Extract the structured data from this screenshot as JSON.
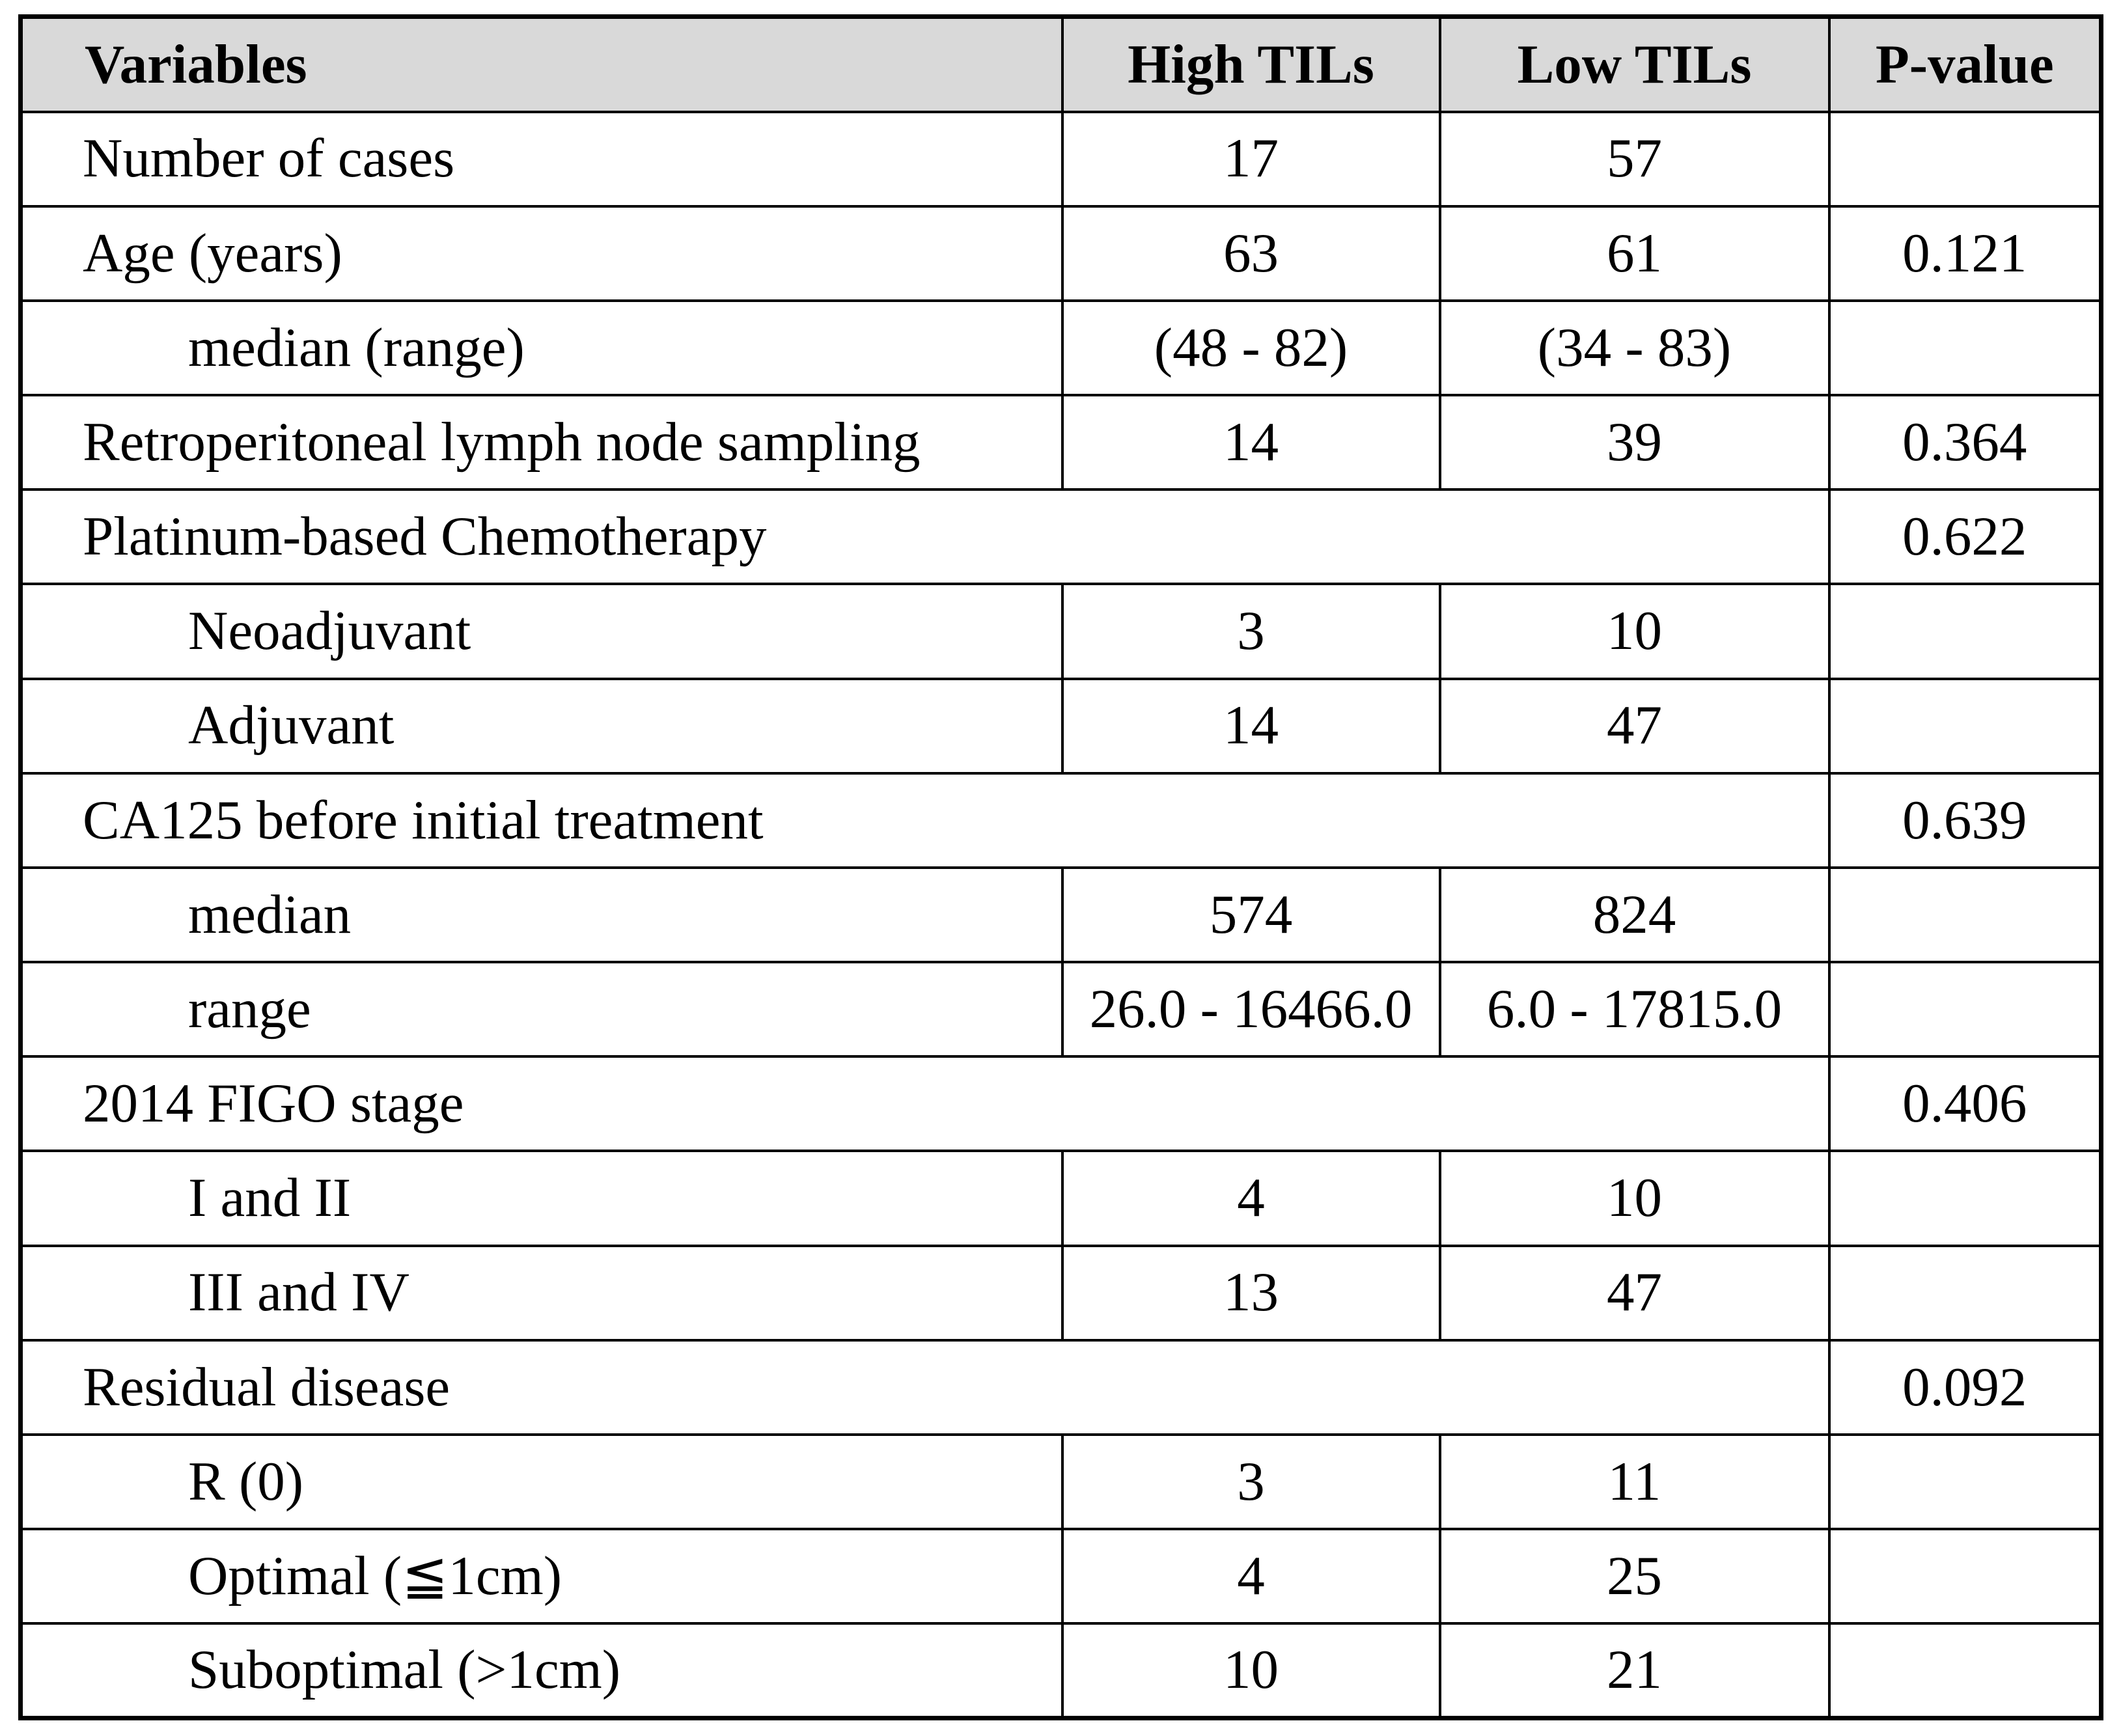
{
  "table": {
    "header_bg": "#d9d9d9",
    "border_color": "#000000",
    "columns": [
      "Variables",
      "High TILs",
      "Low TILs",
      "P-value"
    ],
    "rows": [
      {
        "label": "Number of cases",
        "indent": false,
        "span": false,
        "high": "17",
        "low": "57",
        "p": ""
      },
      {
        "label": "Age (years)",
        "indent": false,
        "span": false,
        "high": "63",
        "low": "61",
        "p": "0.121"
      },
      {
        "label": "median (range)",
        "indent": true,
        "span": false,
        "high": "(48 - 82)",
        "low": "(34 - 83)",
        "p": ""
      },
      {
        "label": "Retroperitoneal lymph node sampling",
        "indent": false,
        "span": false,
        "high": "14",
        "low": "39",
        "p": "0.364"
      },
      {
        "label": "Platinum-based Chemotherapy",
        "indent": false,
        "span": true,
        "p": "0.622"
      },
      {
        "label": "Neoadjuvant",
        "indent": true,
        "span": false,
        "high": "3",
        "low": "10",
        "p": ""
      },
      {
        "label": "Adjuvant",
        "indent": true,
        "span": false,
        "high": "14",
        "low": "47",
        "p": ""
      },
      {
        "label": "CA125 before initial treatment",
        "indent": false,
        "span": true,
        "p": "0.639"
      },
      {
        "label": "median",
        "indent": true,
        "span": false,
        "high": "574",
        "low": "824",
        "p": ""
      },
      {
        "label": "range",
        "indent": true,
        "span": false,
        "high": "26.0 - 16466.0",
        "low": "6.0 - 17815.0",
        "p": ""
      },
      {
        "label": "2014 FIGO stage",
        "indent": false,
        "span": true,
        "p": "0.406"
      },
      {
        "label": "I and II",
        "indent": true,
        "span": false,
        "high": "4",
        "low": "10",
        "p": ""
      },
      {
        "label": "III and IV",
        "indent": true,
        "span": false,
        "high": "13",
        "low": "47",
        "p": ""
      },
      {
        "label": "Residual disease",
        "indent": false,
        "span": true,
        "p": "0.092"
      },
      {
        "label": "R (0)",
        "indent": true,
        "span": false,
        "high": "3",
        "low": "11",
        "p": ""
      },
      {
        "label": "Optimal (≦1cm)",
        "indent": true,
        "span": false,
        "high": "4",
        "low": "25",
        "p": ""
      },
      {
        "label": "Suboptimal (>1cm)",
        "indent": true,
        "span": false,
        "high": "10",
        "low": "21",
        "p": ""
      }
    ]
  }
}
